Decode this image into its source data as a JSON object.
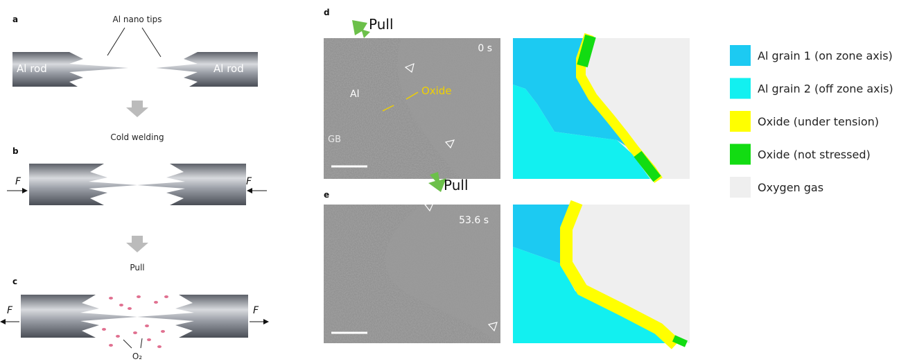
{
  "panel_a": {
    "label": "a",
    "callout": "Al nano tips",
    "left_rod": "Al rod",
    "right_rod": "Al rod"
  },
  "step_1": "Cold welding",
  "panel_b": {
    "label": "b",
    "force_left": "F",
    "force_right": "F"
  },
  "step_2": "Pull",
  "panel_c": {
    "label": "c",
    "force_left": "F",
    "force_right": "F",
    "gas": "O₂"
  },
  "panel_d": {
    "label": "d",
    "action": "Pull",
    "time": "0 s",
    "metal": "Al",
    "oxide": "Oxide",
    "boundary": "GB"
  },
  "panel_e": {
    "label": "e",
    "action": "Pull",
    "time": "53.6 s"
  },
  "legend": [
    {
      "label": "Al grain 1 (on zone axis)",
      "color": "#1ccaf2"
    },
    {
      "label": "Al grain 2 (off zone axis)",
      "color": "#12f0f0"
    },
    {
      "label": "Oxide (under tension)",
      "color": "#ffff00"
    },
    {
      "label": "Oxide (not stressed)",
      "color": "#12dc12"
    },
    {
      "label": "Oxygen gas",
      "color": "#efefef"
    }
  ]
}
